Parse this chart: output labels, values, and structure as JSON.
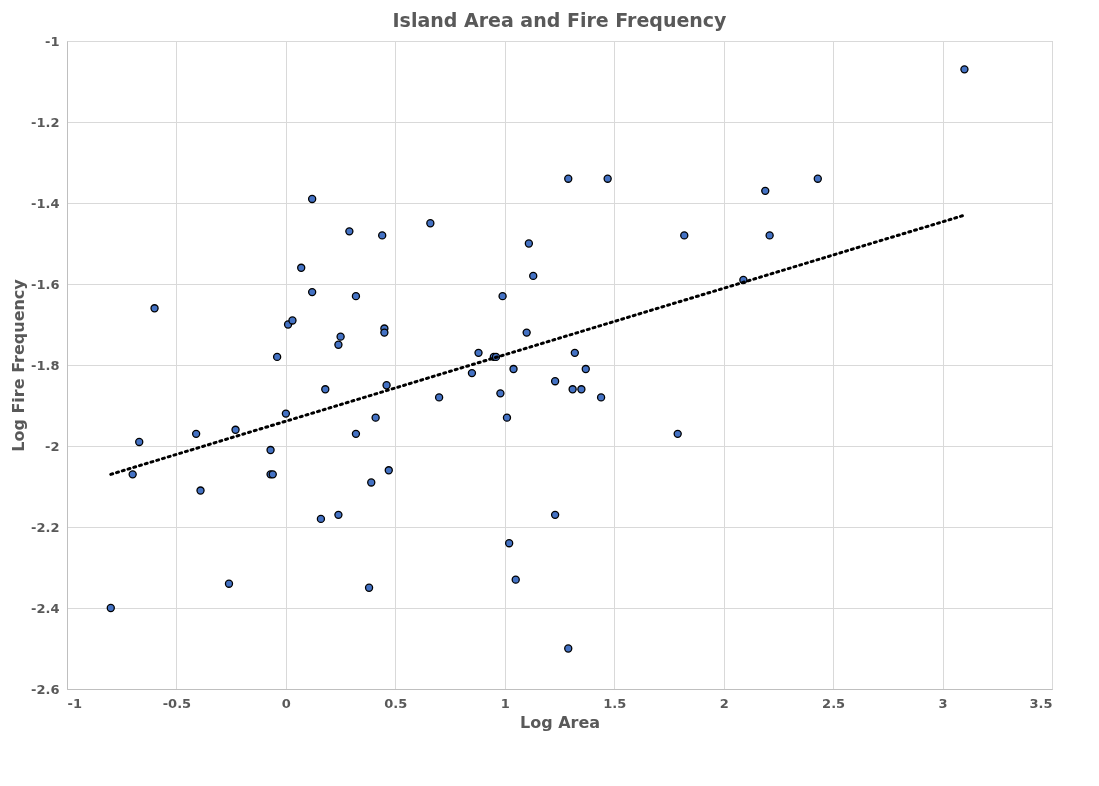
{
  "chart_data": {
    "type": "scatter",
    "title": "Island Area and Fire Frequency",
    "xlabel": "Log Area",
    "ylabel": "Log Fire Frequency",
    "xlim": [
      -1,
      3.5
    ],
    "xticks": [
      -1,
      -0.5,
      0,
      0.5,
      1,
      1.5,
      2,
      2.5,
      3,
      3.5
    ],
    "ylim": [
      -2.6,
      -1
    ],
    "yticks": [
      -2.6,
      -2.4,
      -2.2,
      -2,
      -1.8,
      -1.6,
      -1.4,
      -1.2,
      -1
    ],
    "grid": true,
    "legend": false,
    "series": [
      {
        "type": "scatter",
        "marker": "circle",
        "color": "#4472c4",
        "x": [
          -0.8,
          -0.7,
          -0.67,
          -0.6,
          -0.41,
          -0.39,
          -0.26,
          -0.23,
          -0.07,
          -0.07,
          -0.06,
          -0.04,
          0.0,
          0.01,
          0.03,
          0.07,
          0.12,
          0.12,
          0.16,
          0.18,
          0.24,
          0.24,
          0.25,
          0.29,
          0.32,
          0.32,
          0.38,
          0.39,
          0.41,
          0.44,
          0.45,
          0.45,
          0.46,
          0.47,
          0.66,
          0.7,
          0.85,
          0.88,
          0.95,
          0.96,
          0.98,
          0.99,
          1.01,
          1.02,
          1.04,
          1.05,
          1.1,
          1.11,
          1.13,
          1.23,
          1.23,
          1.29,
          1.29,
          1.31,
          1.32,
          1.35,
          1.37,
          1.44,
          1.47,
          1.79,
          1.82,
          2.09,
          2.19,
          2.21,
          2.43,
          3.1
        ],
        "values": [
          -2.4,
          -2.07,
          -1.99,
          -1.66,
          -1.97,
          -2.11,
          -2.34,
          -1.96,
          -2.01,
          -2.07,
          -2.07,
          -1.78,
          -1.92,
          -1.7,
          -1.69,
          -1.56,
          -1.62,
          -1.39,
          -2.18,
          -1.86,
          -2.17,
          -1.75,
          -1.73,
          -1.47,
          -1.97,
          -1.63,
          -2.35,
          -2.09,
          -1.93,
          -1.48,
          -1.71,
          -1.72,
          -1.85,
          -2.06,
          -1.45,
          -1.88,
          -1.82,
          -1.77,
          -1.78,
          -1.78,
          -1.87,
          -1.63,
          -1.93,
          -2.24,
          -1.81,
          -2.33,
          -1.72,
          -1.5,
          -1.58,
          -2.17,
          -1.84,
          -1.34,
          -2.5,
          -1.86,
          -1.77,
          -1.86,
          -1.81,
          -1.88,
          -1.34,
          -1.97,
          -1.48,
          -1.59,
          -1.37,
          -1.48,
          -1.34,
          -1.07
        ]
      },
      {
        "type": "line",
        "line_style": "dotted",
        "color": "#000000",
        "x": [
          -0.8,
          3.1
        ],
        "values": [
          -2.07,
          -1.43
        ]
      }
    ]
  }
}
